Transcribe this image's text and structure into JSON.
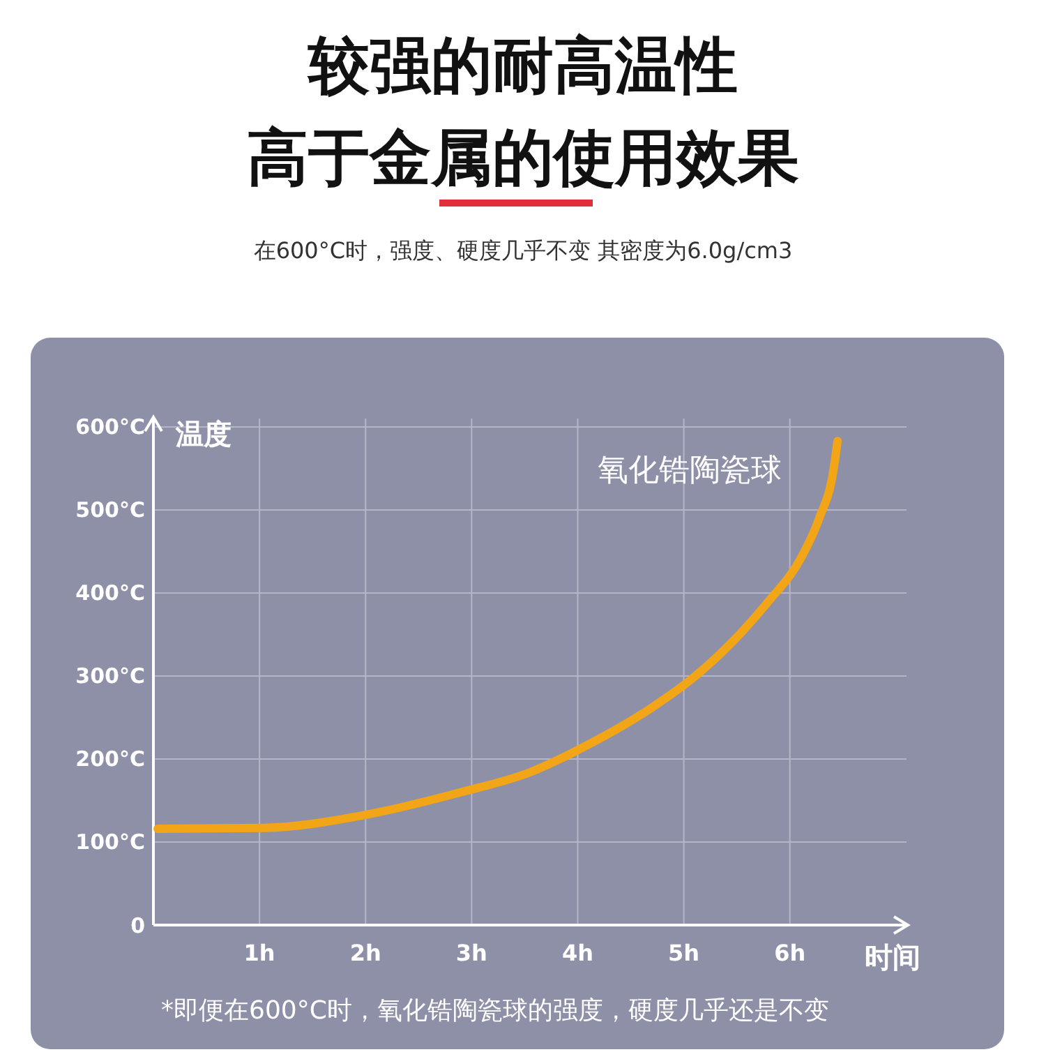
{
  "chart_data": {
    "type": "line",
    "title": "较强的耐高温性",
    "subtitle": "高于金属的使用效果",
    "xlabel": "时间",
    "ylabel": "温度",
    "annotations": [
      "在600°C时，强度、硬度几乎不变 其密度为6.0g/cm3",
      "*即便在600°C时，氧化锆陶瓷球的强度，硬度几乎还是不变"
    ],
    "xlim": [
      0,
      7.1
    ],
    "ylim": [
      0,
      610
    ],
    "xticks": [
      {
        "value": 1,
        "label": "1h"
      },
      {
        "value": 2,
        "label": "2h"
      },
      {
        "value": 3,
        "label": "3h"
      },
      {
        "value": 4,
        "label": "4h"
      },
      {
        "value": 5,
        "label": "5h"
      },
      {
        "value": 6,
        "label": "6h"
      }
    ],
    "yticks": [
      {
        "value": 0,
        "label": "0"
      },
      {
        "value": 100,
        "label": "100°C"
      },
      {
        "value": 200,
        "label": "200°C"
      },
      {
        "value": 300,
        "label": "300°C"
      },
      {
        "value": 400,
        "label": "400°C"
      },
      {
        "value": 500,
        "label": "500°C"
      },
      {
        "value": 600,
        "label": "600°C"
      }
    ],
    "grid": true,
    "marker": "none",
    "line_style": "solid",
    "series": [
      {
        "name": "氧化锆陶瓷球",
        "color": "#f2a516",
        "x": [
          0.04,
          1.04,
          1.97,
          2.9,
          3.55,
          4.08,
          4.7,
          5.11,
          5.54,
          5.8,
          6.1,
          6.28,
          6.41,
          6.45
        ],
        "values": [
          116,
          117,
          132,
          160,
          184,
          216,
          262,
          300,
          352,
          390,
          441,
          491,
          547,
          583
        ]
      }
    ]
  }
}
